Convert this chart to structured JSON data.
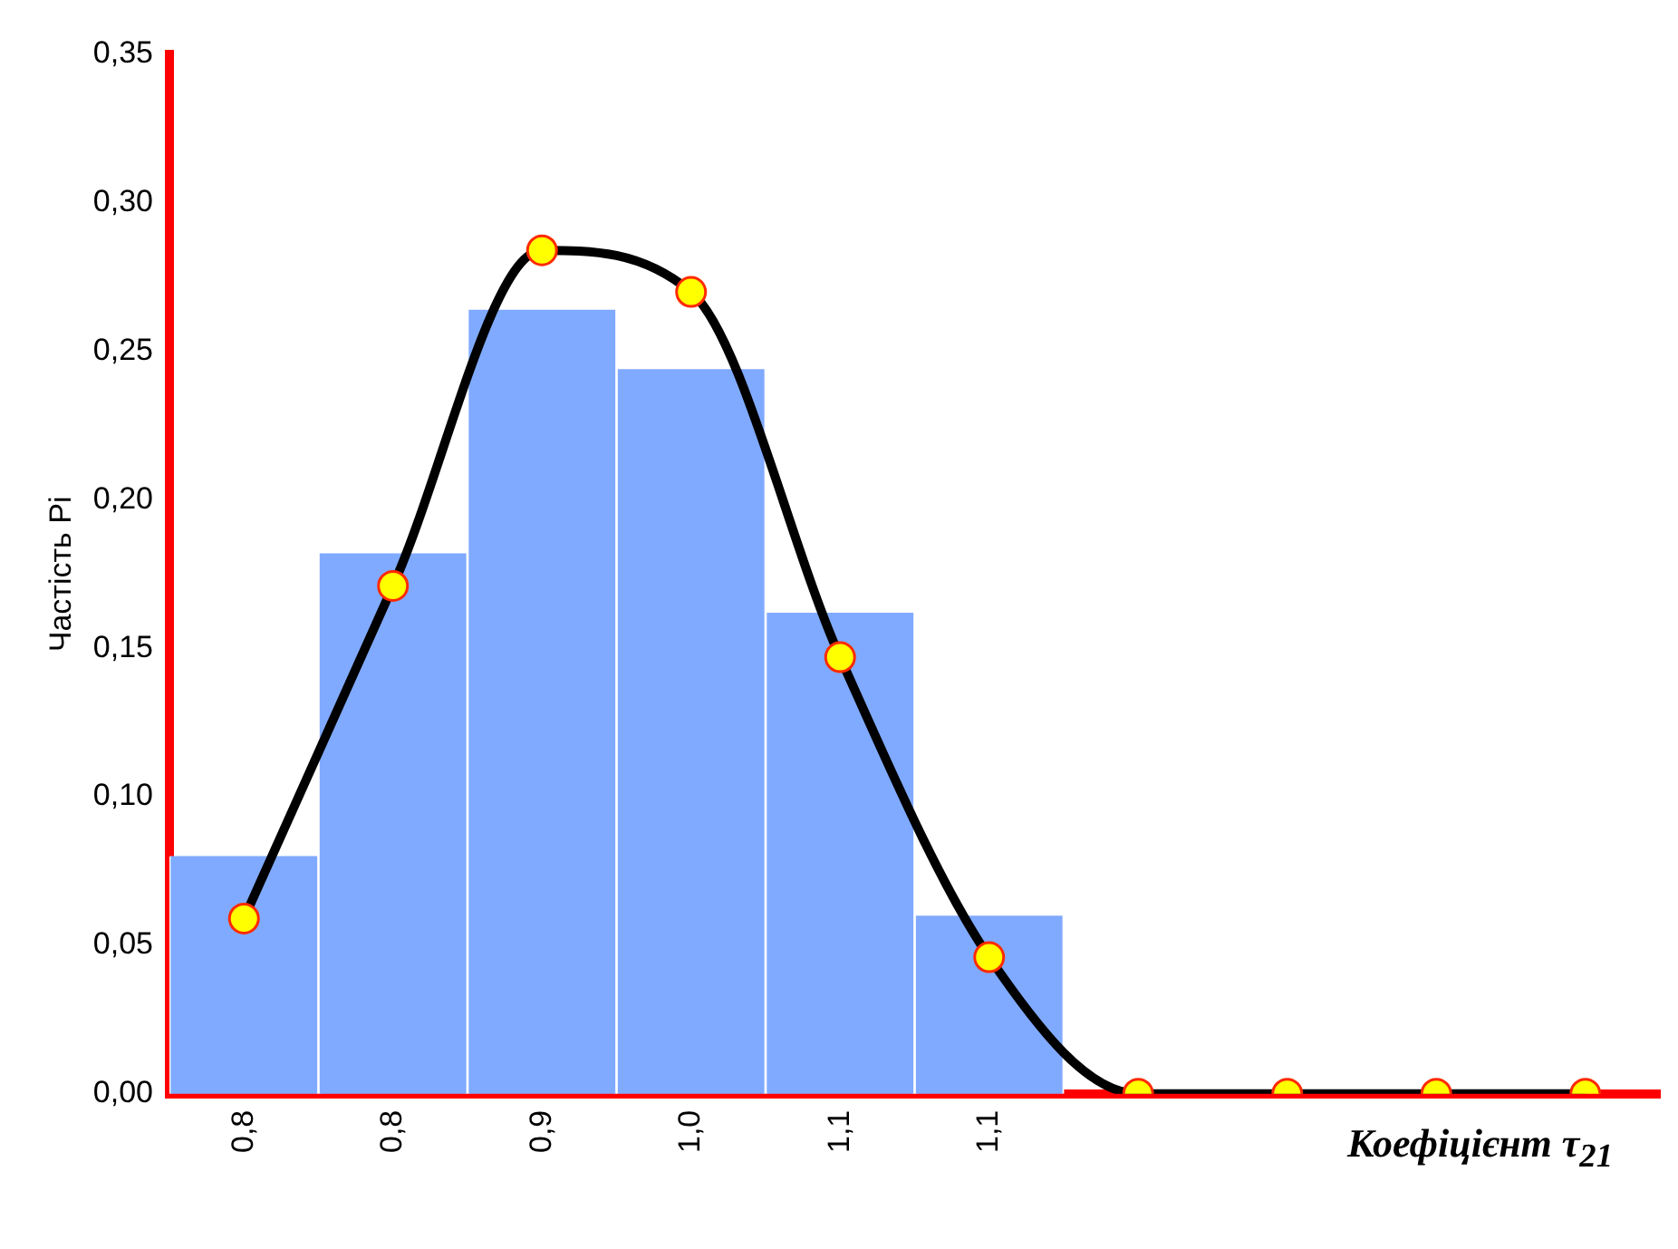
{
  "chart_data": {
    "type": "bar",
    "xlabel": "Коефіцієнт τ$_{21}$",
    "ylabel": "Частість Pi",
    "categories": [
      "0,8",
      "0,8",
      "0,9",
      "1,0",
      "1,1",
      "1,1",
      null,
      null,
      null,
      null
    ],
    "series": [
      {
        "color": "#80aaff",
        "values": [
          0.08,
          0.182,
          0.264,
          0.244,
          0.162,
          0.06,
          null,
          null,
          null,
          null
        ]
      },
      {
        "type": "line",
        "color": "#000000",
        "marker": "circle",
        "values": [
          0.059,
          0.171,
          0.284,
          0.27,
          0.147,
          0.046,
          0,
          0,
          0,
          0
        ]
      }
    ],
    "ylim": [
      0,
      0.35
    ],
    "yticks": [
      {
        "value": 0,
        "label": "0,00"
      },
      {
        "value": 0.05,
        "label": "0,05"
      },
      {
        "value": 0.1,
        "label": "0,10"
      },
      {
        "value": 0.15,
        "label": "0,15"
      },
      {
        "value": 0.2,
        "label": "0,20"
      },
      {
        "value": 0.25,
        "label": "0,25"
      },
      {
        "value": 0.3,
        "label": "0,30"
      },
      {
        "value": 0.35,
        "label": "0,35"
      }
    ],
    "grid": false,
    "legend": false
  }
}
